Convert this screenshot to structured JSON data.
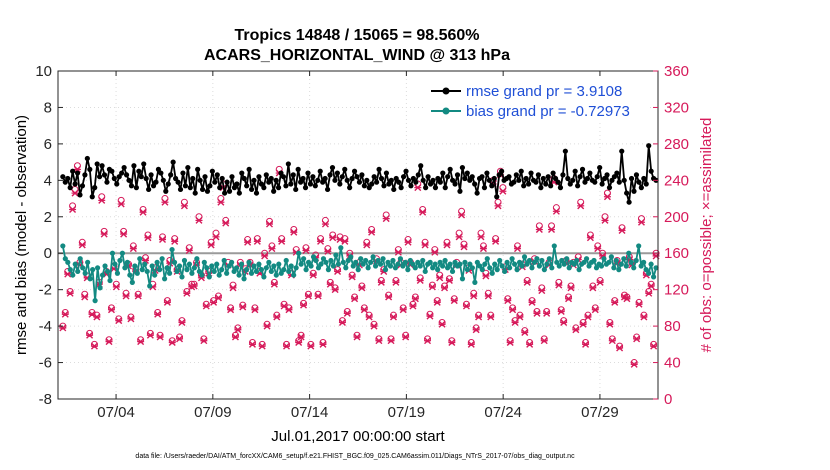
{
  "chart_data": {
    "type": "line",
    "title_line1": "Tropics 14848 / 15065 = 98.560%",
    "title_line2": "ACARS_HORIZONTAL_WIND @ 313 hPa",
    "xlabel": "Jul.01,2017 00:00:00 start",
    "ylabel_left": "rmse and bias (model - observation)",
    "ylabel_right": "# of obs: o=possible; ×=assimilated",
    "xlim": [
      1,
      32
    ],
    "ylim_left": [
      -8,
      10
    ],
    "ylim_right": [
      0,
      360
    ],
    "x_ticks": [
      {
        "value": 4,
        "label": "07/04"
      },
      {
        "value": 9,
        "label": "07/09"
      },
      {
        "value": 14,
        "label": "07/14"
      },
      {
        "value": 19,
        "label": "07/19"
      },
      {
        "value": 24,
        "label": "07/24"
      },
      {
        "value": 29,
        "label": "07/29"
      }
    ],
    "y_ticks_left": [
      "-8",
      "-6",
      "-4",
      "-2",
      "0",
      "2",
      "4",
      "6",
      "8",
      "10"
    ],
    "y_ticks_right": [
      "0",
      "40",
      "80",
      "120",
      "160",
      "200",
      "240",
      "280",
      "320",
      "360"
    ],
    "legend": [
      {
        "label": "rmse grand pr = 3.9108",
        "color": "#000000"
      },
      {
        "label": "bias grand pr = -0.72973",
        "color": "#138a82"
      }
    ],
    "colors": {
      "rmse": "#000000",
      "bias": "#138a82",
      "obs": "#d61a5a",
      "zero_line": "#9a9a9a",
      "right_axis": "#d61a5a",
      "legend_text": "#1f4fd6"
    },
    "series": [
      {
        "name": "rmse",
        "axis": "left",
        "values": [
          4.2,
          3.9,
          4.1,
          3.6,
          4.5,
          3.8,
          4.4,
          3.2,
          3.7,
          4.3,
          5.2,
          4.6,
          3.1,
          3.6,
          4.9,
          4.2,
          4.8,
          4.3,
          3.9,
          4.6,
          4.5,
          4.1,
          3.8,
          4.2,
          4.4,
          4.7,
          4.3,
          4.0,
          3.7,
          4.8,
          3.6,
          4.5,
          4.2,
          4.9,
          4.1,
          3.5,
          4.3,
          3.7,
          3.9,
          4.6,
          4.4,
          4.0,
          3.4,
          3.8,
          4.3,
          5.0,
          4.1,
          3.9,
          3.5,
          4.4,
          3.7,
          4.7,
          3.6,
          4.1,
          3.3,
          4.6,
          4.0,
          3.5,
          4.2,
          3.4,
          3.7,
          4.5,
          3.9,
          4.3,
          3.6,
          4.1,
          3.3,
          3.9,
          3.4,
          4.2,
          3.6,
          3.8,
          3.3,
          4.4,
          4.1,
          3.7,
          4.6,
          3.5,
          4.0,
          3.3,
          4.2,
          3.8,
          3.6,
          4.3,
          3.9,
          4.1,
          3.4,
          4.0,
          3.6,
          4.4,
          4.2,
          3.7,
          4.9,
          3.8,
          4.3,
          3.5,
          4.6,
          3.9,
          4.1,
          3.6,
          4.4,
          3.8,
          4.2,
          3.7,
          4.0,
          4.5,
          3.9,
          4.1,
          3.5,
          4.3,
          4.7,
          4.0,
          4.4,
          3.8,
          4.2,
          4.6,
          4.0,
          3.6,
          4.1,
          4.5,
          4.2,
          3.9,
          4.3,
          3.7,
          4.0,
          3.6,
          3.8,
          4.2,
          3.9,
          4.6,
          4.1,
          3.7,
          4.4,
          3.8,
          4.0,
          3.5,
          4.1,
          3.9,
          3.6,
          4.2,
          4.5,
          4.0,
          3.7,
          4.1,
          3.9,
          4.3,
          4.8,
          4.0,
          3.6,
          4.2,
          3.8,
          4.0,
          3.6,
          4.1,
          3.9,
          4.4,
          3.6,
          4.2,
          4.6,
          4.0,
          3.8,
          4.3,
          3.4,
          4.7,
          4.1,
          4.4,
          4.0,
          4.2,
          3.8,
          3.3,
          4.1,
          4.2,
          3.6,
          4.4,
          4.0,
          3.7,
          4.1,
          3.1,
          4.3,
          4.5,
          4.0,
          4.1,
          4.2,
          3.8,
          3.9,
          4.3,
          4.0,
          4.5,
          3.7,
          4.1,
          3.8,
          4.4,
          4.0,
          3.9,
          4.3,
          3.6,
          4.1,
          3.8,
          4.2,
          3.7,
          4.4,
          4.1,
          3.9,
          3.6,
          4.3,
          5.6,
          4.1,
          3.8,
          4.0,
          4.5,
          3.7,
          4.2,
          4.6,
          3.9,
          4.1,
          4.4,
          4.0,
          3.9,
          4.2,
          4.7,
          3.8,
          4.1,
          4.3,
          3.6,
          4.0,
          4.2,
          4.4,
          3.9,
          5.6,
          4.0,
          3.3,
          2.8,
          4.1,
          3.4,
          4.3,
          3.9,
          3.6,
          4.1,
          3.8,
          5.9,
          4.5,
          4.1,
          4.0
        ]
      },
      {
        "name": "bias",
        "axis": "left",
        "values": [
          0.4,
          -0.3,
          -0.5,
          -0.9,
          -1.2,
          -0.6,
          -1.0,
          -0.3,
          -0.8,
          -1.1,
          -0.5,
          -1.4,
          -0.9,
          -2.6,
          -0.8,
          -1.9,
          -1.2,
          -0.7,
          -1.0,
          -1.5,
          0.0,
          -0.6,
          -1.1,
          -0.4,
          0.0,
          -0.8,
          -0.5,
          -1.2,
          -1.6,
          -0.7,
          -1.1,
          -0.3,
          -0.9,
          -0.6,
          -1.0,
          -1.8,
          -0.7,
          -1.2,
          -0.5,
          -0.9,
          -0.3,
          -1.4,
          -0.8,
          -1.1,
          0.2,
          -0.5,
          -1.0,
          -0.7,
          -1.3,
          -0.4,
          -0.9,
          -0.6,
          -1.1,
          -0.8,
          -0.3,
          -1.0,
          -1.2,
          -0.5,
          -0.8,
          -1.3,
          -0.7,
          -1.0,
          -0.6,
          -1.2,
          -0.9,
          -0.4,
          -1.1,
          -0.7,
          -0.5,
          -1.0,
          -0.8,
          -1.2,
          -0.6,
          -1.4,
          -0.9,
          -0.5,
          -1.1,
          -0.7,
          -1.0,
          -0.6,
          -0.9,
          -1.3,
          -0.8,
          -0.5,
          -1.0,
          -0.7,
          -1.2,
          -0.6,
          -1.1,
          -0.9,
          -0.4,
          -1.0,
          -0.7,
          -1.2,
          -0.8,
          0.0,
          -0.6,
          -0.3,
          -0.9,
          -0.5,
          -0.7,
          -0.2,
          -0.4,
          -0.8,
          -0.6,
          -0.3,
          -0.5,
          -0.9,
          -0.4,
          -0.7,
          -0.1,
          -0.6,
          0.3,
          -0.5,
          -0.8,
          -0.4,
          -0.2,
          -0.7,
          -0.5,
          -0.9,
          -0.3,
          -0.6,
          -0.4,
          -0.8,
          -0.5,
          -0.2,
          -0.7,
          -0.4,
          -0.6,
          -0.3,
          -0.9,
          -0.5,
          -0.7,
          -0.4,
          -0.8,
          -0.6,
          -0.3,
          -0.7,
          -0.5,
          -0.9,
          -0.4,
          -0.6,
          -0.8,
          -0.5,
          -0.7,
          -0.4,
          -1.0,
          -0.6,
          -0.5,
          -0.8,
          -0.6,
          -0.9,
          -0.5,
          -0.7,
          -0.4,
          -0.8,
          -0.6,
          -1.0,
          -0.5,
          -0.7,
          -0.6,
          -1.4,
          -0.5,
          -0.9,
          -0.6,
          -0.8,
          -1.6,
          -0.5,
          -0.7,
          -0.9,
          -0.6,
          -0.3,
          -0.8,
          -1.1,
          -0.6,
          -0.9,
          -0.4,
          -0.7,
          -1.0,
          -0.5,
          -0.8,
          -0.3,
          -0.6,
          -0.9,
          -0.5,
          -0.7,
          -0.2,
          -0.6,
          -0.4,
          -0.8,
          -0.5,
          -0.3,
          -0.7,
          -0.4,
          -0.9,
          -0.6,
          -0.3,
          -0.8,
          0.4,
          -0.5,
          -0.7,
          -0.4,
          -0.6,
          -0.3,
          -0.8,
          -0.5,
          -0.6,
          -0.4,
          -0.9,
          -0.6,
          -0.5,
          -0.3,
          -0.7,
          -0.5,
          -0.4,
          -0.8,
          -0.6,
          -0.7,
          -0.3,
          -0.6,
          -0.5,
          -0.2,
          -0.8,
          -0.4,
          -0.9,
          -0.6,
          -0.3,
          -0.7,
          0.0,
          -0.5,
          -0.8,
          -0.4,
          0.4,
          -0.7,
          -0.5,
          -0.9,
          -1.1,
          -0.6,
          -1.3,
          -0.8
        ]
      },
      {
        "name": "obs_possible",
        "axis": "right",
        "values": [
          80,
          95,
          140,
          118,
          212,
          230,
          256,
          150,
          172,
          115,
          135,
          72,
          95,
          60,
          92,
          128,
          222,
          184,
          140,
          65,
          100,
          146,
          126,
          88,
          218,
          184,
          116,
          148,
          90,
          168,
          142,
          115,
          65,
          208,
          155,
          180,
          72,
          126,
          144,
          95,
          70,
          178,
          220,
          108,
          152,
          64,
          176,
          142,
          68,
          86,
          216,
          118,
          166,
          126,
          126,
          150,
          200,
          136,
          66,
          104,
          140,
          172,
          108,
          182,
          113,
          220,
          236,
          196,
          150,
          100,
          125,
          70,
          78,
          150,
          103,
          143,
          175,
          150,
          62,
          100,
          176,
          140,
          60,
          160,
          82,
          195,
          168,
          128,
          92,
          252,
          176,
          104,
          60,
          100,
          138,
          186,
          164,
          64,
          70,
          105,
          166,
          115,
          60,
          138,
          158,
          115,
          176,
          62,
          196,
          165,
          128,
          180,
          122,
          142,
          178,
          86,
          176,
          96,
          160,
          136,
          112,
          70,
          150,
          124,
          100,
          172,
          92,
          186,
          82,
          154,
          66,
          130,
          142,
          202,
          114,
          66,
          92,
          130,
          164,
          150,
          100,
          70,
          175,
          150,
          104,
          112,
          236,
          133,
          208,
          172,
          66,
          93,
          125,
          164,
          108,
          136,
          84,
          124,
          172,
          132,
          64,
          110,
          150,
          182,
          206,
          170,
          104,
          144,
          62,
          116,
          78,
          92,
          182,
          168,
          138,
          116,
          92,
          240,
          176,
          216,
          250,
          232,
          145,
          110,
          64,
          100,
          86,
          168,
          92,
          148,
          75,
          130,
          62,
          108,
          154,
          96,
          190,
          122,
          66,
          96,
          150,
          190,
          242,
          210,
          128,
          98,
          86,
          152,
          112,
          124,
          150,
          78,
          156,
          216,
          84,
          62,
          92,
          180,
          124,
          100,
          168,
          130,
          160,
          200,
          226,
          84,
          66,
          108,
          152,
          58,
          188,
          114,
          112,
          156,
          150,
          40,
          68,
          106,
          198,
          92,
          138,
          118,
          126,
          60,
          160
        ]
      },
      {
        "name": "obs_assimilated",
        "axis": "right",
        "values": [
          78,
          93,
          137,
          116,
          208,
          226,
          252,
          147,
          169,
          112,
          133,
          70,
          93,
          58,
          90,
          126,
          218,
          181,
          137,
          63,
          98,
          143,
          123,
          86,
          214,
          181,
          113,
          146,
          88,
          165,
          140,
          113,
          63,
          205,
          152,
          177,
          70,
          123,
          141,
          93,
          68,
          175,
          216,
          106,
          149,
          62,
          173,
          140,
          66,
          84,
          212,
          116,
          163,
          123,
          124,
          147,
          196,
          133,
          64,
          102,
          138,
          169,
          106,
          178,
          111,
          216,
          232,
          193,
          147,
          98,
          122,
          68,
          76,
          147,
          101,
          140,
          172,
          147,
          60,
          98,
          173,
          138,
          58,
          157,
          80,
          192,
          165,
          126,
          90,
          248,
          173,
          102,
          58,
          98,
          136,
          183,
          161,
          62,
          68,
          103,
          163,
          113,
          58,
          136,
          155,
          113,
          173,
          60,
          192,
          162,
          126,
          177,
          120,
          140,
          175,
          84,
          173,
          94,
          157,
          134,
          110,
          68,
          147,
          122,
          98,
          169,
          90,
          183,
          80,
          151,
          64,
          128,
          140,
          198,
          112,
          64,
          90,
          128,
          161,
          147,
          98,
          68,
          172,
          147,
          102,
          110,
          232,
          130,
          205,
          169,
          64,
          91,
          123,
          161,
          106,
          133,
          82,
          122,
          169,
          130,
          62,
          108,
          147,
          178,
          202,
          167,
          102,
          141,
          60,
          113,
          76,
          90,
          178,
          165,
          135,
          113,
          90,
          236,
          173,
          212,
          246,
          228,
          142,
          108,
          62,
          98,
          84,
          165,
          90,
          145,
          73,
          128,
          60,
          106,
          151,
          94,
          186,
          119,
          64,
          94,
          147,
          186,
          238,
          206,
          125,
          96,
          84,
          149,
          110,
          122,
          147,
          76,
          153,
          212,
          82,
          60,
          90,
          177,
          122,
          98,
          165,
          128,
          157,
          196,
          222,
          82,
          64,
          106,
          149,
          56,
          185,
          112,
          110,
          153,
          147,
          38,
          66,
          104,
          194,
          90,
          136,
          116,
          124,
          58,
          157
        ]
      }
    ]
  },
  "footer": "data file: /Users/raeder/DAI/ATM_forcXX/CAM6_setup/f.e21.FHIST_BGC.f09_025.CAM6assim.011/Diags_NTrS_2017-07/obs_diag_output.nc"
}
